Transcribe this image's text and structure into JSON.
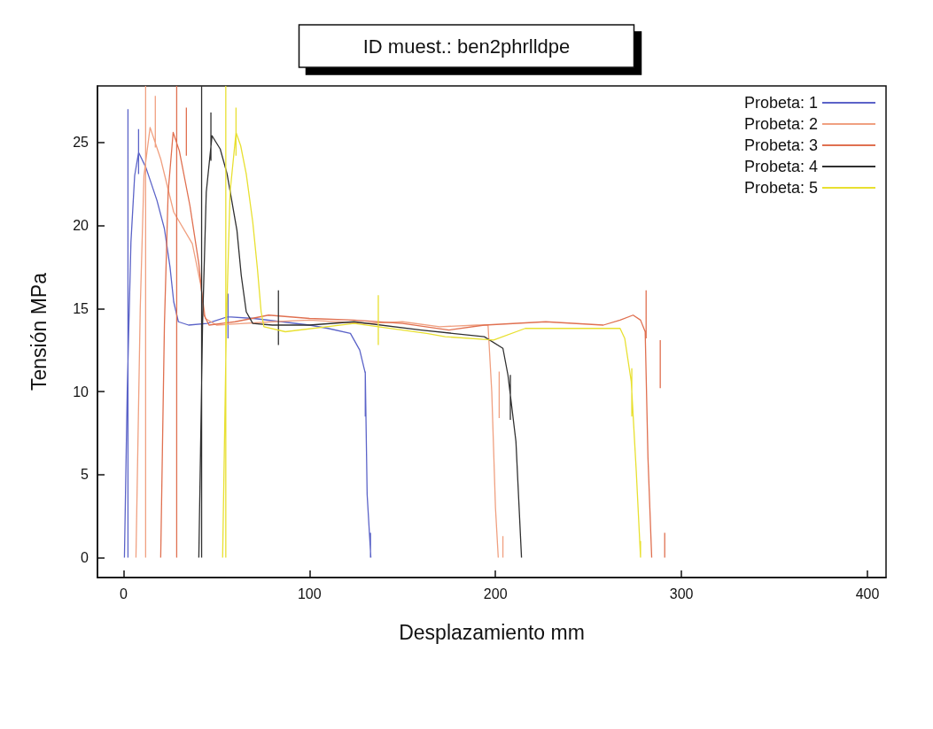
{
  "chart_data": {
    "type": "line",
    "title": "ID muest.: ben2phrlldpe",
    "xlabel": "Desplazamiento mm",
    "ylabel": "Tensión MPa",
    "xlim": [
      -14,
      410
    ],
    "xticks": [
      0,
      100,
      200,
      300,
      400
    ],
    "ylim": [
      -1.2,
      28.4
    ],
    "yticks": [
      0,
      5,
      10,
      15,
      20,
      25
    ],
    "legend": "top right",
    "marker": "none",
    "line_style": "solid",
    "series": [
      {
        "name": "Probeta: 1",
        "color": "#5b63c8",
        "x": [
          0.5,
          2,
          4,
          6,
          8.1,
          12,
          18,
          22,
          25,
          27,
          29.5,
          35,
          45,
          56,
          70,
          85,
          100,
          110,
          122,
          127,
          130,
          131,
          133,
          null,
          2.4,
          2.4,
          null,
          8.1,
          8.1,
          null,
          56.2,
          56.2,
          null,
          130,
          130,
          null,
          132.8,
          132.8
        ],
        "values": [
          0,
          10,
          19,
          23,
          24.4,
          23.5,
          21.5,
          19.8,
          17.5,
          15.4,
          14.2,
          14.0,
          14.1,
          14.5,
          14.4,
          14.2,
          14.0,
          13.8,
          13.5,
          12.5,
          11.1,
          3.8,
          0,
          null,
          0,
          27,
          null,
          23.1,
          25.8,
          null,
          13.2,
          15.9,
          null,
          8.5,
          11.2,
          null,
          0,
          1.5
        ]
      },
      {
        "name": "Probeta: 2",
        "color": "#f0a080",
        "x": [
          6.7,
          9,
          11,
          14.3,
          20,
          27,
          37,
          41.4,
          44,
          50,
          80,
          100,
          130,
          150,
          170,
          190,
          196,
          198,
          200,
          201.5,
          null,
          11.9,
          11.9,
          null,
          17.1,
          17.1,
          null,
          202,
          202,
          null,
          204,
          204
        ],
        "values": [
          0,
          15,
          23,
          25.9,
          24,
          20.8,
          18.9,
          16.5,
          14.4,
          14.0,
          14.2,
          14.3,
          14.1,
          14.2,
          13.9,
          14.0,
          14.0,
          10,
          3,
          0,
          null,
          0,
          28.4,
          null,
          24.7,
          27.8,
          null,
          8.4,
          11.2,
          null,
          0,
          1.3
        ]
      },
      {
        "name": "Probeta: 3",
        "color": "#e07050",
        "x": [
          20,
          22,
          24,
          26.7,
          30,
          35.7,
          40.5,
          43.3,
          46,
          60,
          78,
          100,
          124,
          150,
          175,
          194,
          227,
          258,
          267,
          274,
          278,
          280.5,
          282,
          284,
          null,
          28.6,
          28.6,
          null,
          33.8,
          33.8,
          null,
          281,
          281,
          null,
          288.6,
          288.6,
          null,
          291,
          291
        ],
        "values": [
          0,
          14,
          22,
          25.6,
          24.5,
          21.2,
          17.7,
          14.6,
          14.0,
          14.2,
          14.6,
          14.4,
          14.3,
          14.1,
          13.7,
          14.0,
          14.2,
          14.0,
          14.3,
          14.6,
          14.3,
          13.6,
          6,
          0,
          null,
          0,
          28.4,
          null,
          24.2,
          27.1,
          null,
          13.2,
          16.1,
          null,
          10.2,
          13.1,
          null,
          0,
          1.5
        ]
      },
      {
        "name": "Probeta: 4",
        "color": "#303030",
        "x": [
          40.5,
          42.5,
          44.5,
          47.6,
          52,
          55.7,
          61,
          63.3,
          66,
          69.5,
          80,
          100,
          124,
          160,
          194,
          204,
          206.7,
          211,
          214,
          null,
          42,
          42,
          null,
          47,
          47,
          null,
          83.3,
          83.3,
          null,
          208,
          208
        ],
        "values": [
          0,
          14,
          22,
          25.4,
          24.6,
          23.1,
          19.7,
          17.0,
          14.8,
          14.1,
          14.0,
          14.0,
          14.2,
          13.7,
          13.3,
          12.6,
          11.0,
          7.0,
          0,
          null,
          0,
          28.4,
          null,
          23.9,
          26.8,
          null,
          12.8,
          16.1,
          null,
          8.3,
          11.0
        ]
      },
      {
        "name": "Probeta: 5",
        "color": "#e8e030",
        "x": [
          53.3,
          55.3,
          57.3,
          60.5,
          63,
          66,
          69.5,
          72,
          74,
          75.5,
          87,
          124,
          163,
          173,
          199,
          216,
          240,
          267,
          269.5,
          273,
          275.7,
          278,
          null,
          55,
          55,
          null,
          60.5,
          60.5,
          null,
          137,
          137,
          null,
          273.3,
          273.3,
          null,
          278,
          278
        ],
        "values": [
          0,
          14,
          22,
          25.6,
          24.8,
          23.1,
          20.2,
          17.4,
          14.8,
          13.9,
          13.6,
          14.1,
          13.5,
          13.3,
          13.1,
          13.8,
          13.8,
          13.8,
          13.2,
          10.6,
          5.2,
          0,
          null,
          0,
          28.4,
          null,
          24.2,
          27.1,
          null,
          12.8,
          15.8,
          null,
          8.5,
          11.4,
          null,
          0,
          1.0
        ]
      }
    ]
  }
}
